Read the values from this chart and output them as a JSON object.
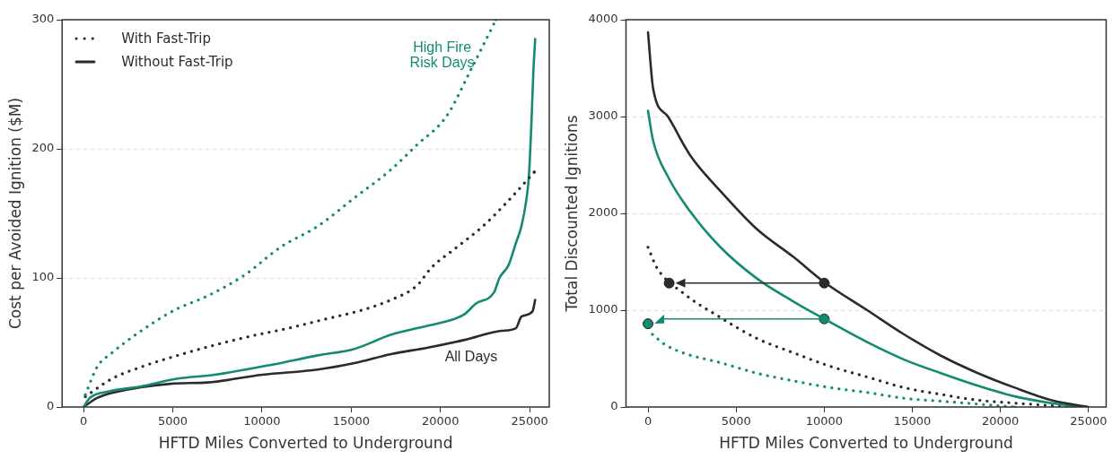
{
  "chart_data": [
    {
      "type": "line",
      "xlabel": "HFTD Miles Converted to Underground",
      "ylabel": "Cost per Avoided Ignition ($M)",
      "xlim": [
        -1200,
        26100
      ],
      "xticks": [
        0,
        5000,
        10000,
        15000,
        20000,
        25000
      ],
      "ylim": [
        0,
        300
      ],
      "yticks": [
        0,
        100,
        200,
        300
      ],
      "grid": "y",
      "marker": "none",
      "annotations": [
        "With Fast-Trip",
        "Without Fast-Trip",
        "High Fire\nRisk Days",
        "All Days"
      ],
      "series": [
        {
          "color": "#138a72",
          "line_style": "dotted",
          "x": [
            100,
            760,
            1600,
            3230,
            5090,
            6940,
            9000,
            11060,
            13120,
            15180,
            17240,
            18680,
            20330,
            21770,
            23110
          ],
          "values": [
            9.5,
            31,
            42,
            59,
            75,
            86,
            102,
            124,
            140,
            162,
            184,
            203,
            225,
            263,
            300
          ]
        },
        {
          "color": "#2b2b2b",
          "line_style": "dotted",
          "x": [
            100,
            1600,
            3230,
            5290,
            7350,
            9410,
            11470,
            13530,
            15590,
            17240,
            18680,
            19500,
            20940,
            22380,
            23820,
            25260
          ],
          "values": [
            8,
            22,
            31,
            40,
            48,
            55,
            61,
            68,
            75,
            83,
            94,
            108,
            124,
            140,
            160,
            182
          ]
        },
        {
          "color": "#138a72",
          "line_style": "solid",
          "x": [
            0,
            350,
            1380,
            3230,
            5290,
            7350,
            10650,
            13120,
            15180,
            17240,
            19300,
            20740,
            21360,
            21980,
            23010,
            23310,
            23820,
            24230,
            24540,
            24810,
            24960,
            25100,
            25210,
            25310
          ],
          "values": [
            0,
            7,
            12,
            16,
            22,
            25,
            33,
            40,
            45,
            56,
            63,
            68,
            72,
            80,
            89,
            100,
            110,
            127,
            140,
            160,
            179,
            220,
            260,
            285
          ]
        },
        {
          "color": "#2b2b2b",
          "line_style": "solid",
          "x": [
            0,
            760,
            1600,
            4880,
            6940,
            10030,
            13120,
            15180,
            17240,
            19300,
            21360,
            23420,
            24230,
            24540,
            25160,
            25310
          ],
          "values": [
            0,
            7,
            11,
            18,
            19,
            25,
            29,
            34,
            41,
            46,
            52,
            59,
            61,
            70,
            74,
            83
          ]
        }
      ]
    },
    {
      "type": "line",
      "xlabel": "HFTD Miles Converted to Underground",
      "ylabel": "Total Discounted Ignitions",
      "xlim": [
        -1250,
        26000
      ],
      "xticks": [
        0,
        5000,
        10000,
        15000,
        20000,
        25000
      ],
      "ylim": [
        0,
        4000
      ],
      "yticks": [
        0,
        1000,
        2000,
        3000,
        4000
      ],
      "grid": "y",
      "marker": "none",
      "series": [
        {
          "color": "#2b2b2b",
          "line_style": "solid",
          "x": [
            0,
            290,
            1130,
            2390,
            4060,
            6160,
            8250,
            10000,
            12440,
            14530,
            16620,
            18720,
            20810,
            22900,
            25000
          ],
          "values": [
            3870,
            3290,
            3000,
            2600,
            2240,
            1840,
            1550,
            1290,
            1000,
            750,
            530,
            350,
            200,
            70,
            0
          ]
        },
        {
          "color": "#138a72",
          "line_style": "solid",
          "x": [
            0,
            290,
            1130,
            2390,
            4060,
            6160,
            8250,
            10000,
            12440,
            14530,
            16620,
            18720,
            20810,
            22900,
            24580
          ],
          "values": [
            3060,
            2750,
            2380,
            2020,
            1660,
            1330,
            1090,
            910,
            670,
            490,
            350,
            220,
            110,
            40,
            0
          ]
        },
        {
          "color": "#2b2b2b",
          "line_style": "dotted",
          "x": [
            0,
            500,
            1970,
            4060,
            6160,
            8250,
            10340,
            12440,
            14530,
            16620,
            18720,
            20810,
            23950
          ],
          "values": [
            1650,
            1440,
            1180,
            930,
            710,
            560,
            420,
            310,
            200,
            130,
            70,
            40,
            0
          ]
        },
        {
          "color": "#138a72",
          "line_style": "dotted",
          "x": [
            250,
            920,
            1970,
            4060,
            6160,
            8250,
            10340,
            12440,
            14530,
            16620,
            18720,
            20810
          ],
          "values": [
            750,
            650,
            560,
            460,
            350,
            270,
            200,
            150,
            90,
            60,
            30,
            0
          ]
        },
        {
          "type": "scatter",
          "marker": "circle",
          "color": "#2b2b2b",
          "x": [
            10000,
            1200
          ],
          "values": [
            1280,
            1280
          ]
        },
        {
          "type": "scatter",
          "marker": "circle",
          "color": "#138a72",
          "x": [
            10000,
            0
          ],
          "values": [
            910,
            860
          ]
        }
      ]
    }
  ]
}
